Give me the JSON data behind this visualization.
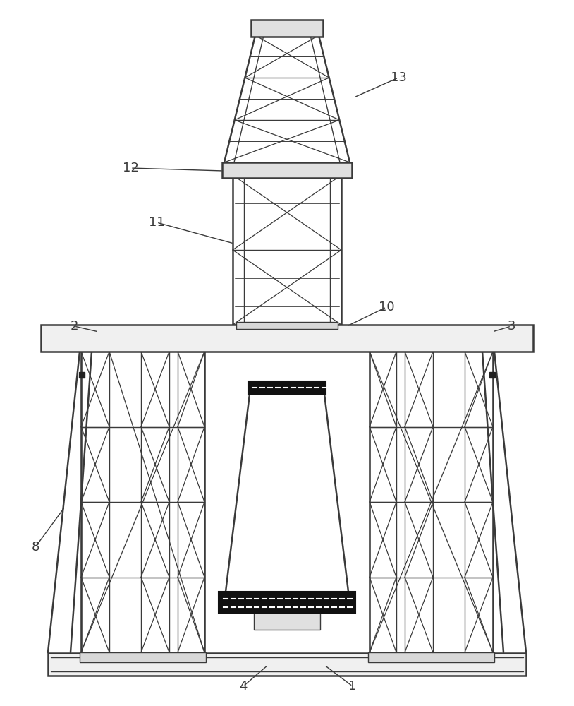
{
  "bg_color": "#ffffff",
  "line_color": "#3a3a3a",
  "dark_fill": "#1a1a1a",
  "label_color": "#3a3a3a",
  "lw_main": 1.8,
  "lw_thin": 1.0,
  "lw_xbrace": 0.9
}
